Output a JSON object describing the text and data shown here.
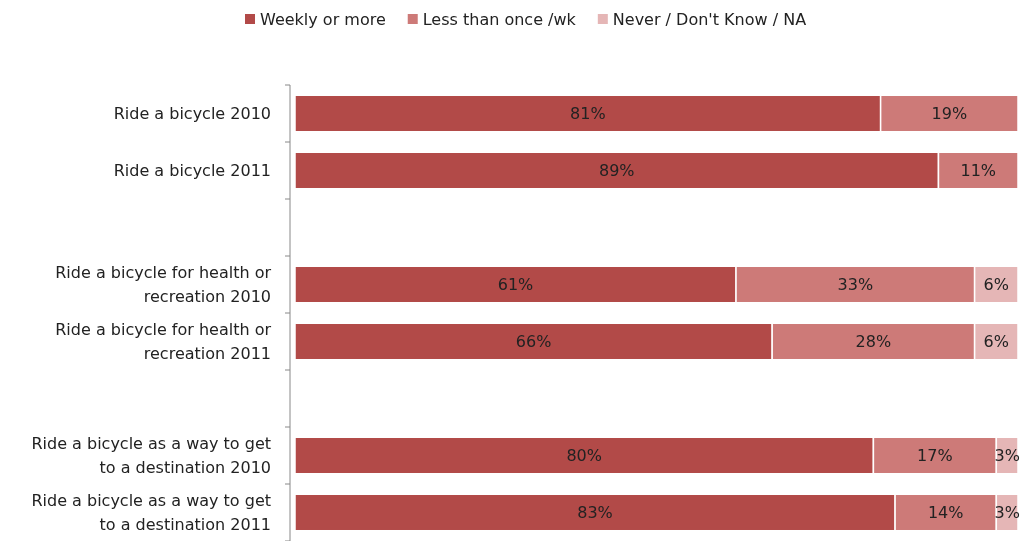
{
  "chart_data": {
    "type": "bar",
    "orientation": "horizontal",
    "stacked": true,
    "legend": "top",
    "tick_labels": "y",
    "xlim": [
      0,
      100
    ],
    "categories": [
      "Ride a bicycle 2010",
      "Ride a bicycle 2011",
      null,
      "Ride a bicycle for health or recreation 2010",
      "Ride a bicycle for health or recreation 2011",
      null,
      "Ride a bicycle as a way to get to a destination 2010",
      "Ride a bicycle as a way to get to a destination 2011"
    ],
    "series": [
      {
        "name": "Weekly or more",
        "color": "#b24a48",
        "values": [
          81,
          89,
          null,
          61,
          66,
          null,
          80,
          83
        ],
        "value_labels": [
          "81%",
          "89%",
          null,
          "61%",
          "66%",
          null,
          "80%",
          "83%"
        ]
      },
      {
        "name": "Less than once /wk",
        "color": "#cd7a78",
        "values": [
          19,
          11,
          null,
          33,
          28,
          null,
          17,
          14
        ],
        "value_labels": [
          "19%",
          "11%",
          null,
          "33%",
          "28%",
          null,
          "17%",
          "14%"
        ]
      },
      {
        "name": "Never / Don't Know / NA",
        "color": "#e5b6b6",
        "values": [
          null,
          null,
          null,
          6,
          6,
          null,
          3,
          3
        ],
        "value_labels": [
          null,
          null,
          null,
          "6%",
          "6%",
          null,
          "3%",
          "3%"
        ]
      }
    ]
  }
}
